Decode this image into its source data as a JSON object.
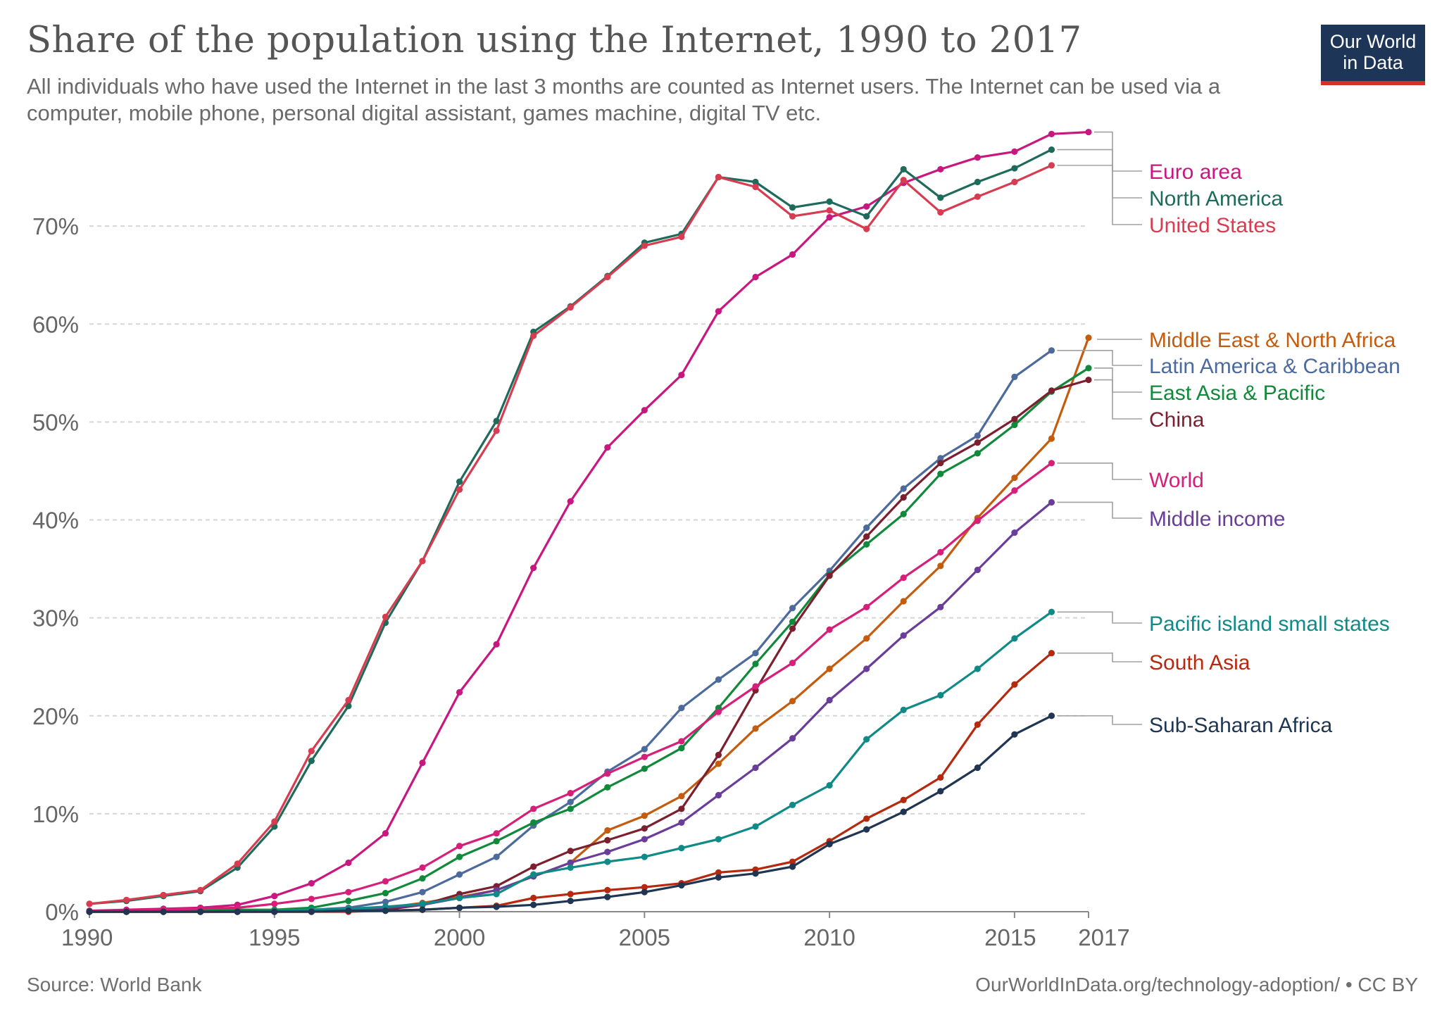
{
  "header": {
    "title": "Share of the population using the Internet, 1990 to 2017",
    "subtitle": "All individuals who have used the Internet in the last 3 months are counted as Internet users. The Internet can be used via a computer, mobile phone, personal digital assistant, games machine, digital TV etc.",
    "logo_line1": "Our World",
    "logo_line2": "in Data",
    "logo_color": "#1d3557",
    "logo_accent": "#d73027"
  },
  "footer": {
    "source": "Source: World Bank",
    "license": "OurWorldInData.org/technology-adoption/ • CC BY"
  },
  "chart_data": {
    "type": "line",
    "title": "Share of the population using the Internet, 1990 to 2017",
    "xlabel": "",
    "ylabel": "",
    "xlim": [
      1990,
      2017
    ],
    "ylim": [
      0,
      80
    ],
    "x_ticks": [
      1990,
      1995,
      2000,
      2005,
      2010,
      2015,
      2017
    ],
    "x_tick_labels": [
      "1990",
      "1995",
      "2000",
      "2005",
      "2010",
      "2015",
      "2017"
    ],
    "y_ticks": [
      0,
      10,
      20,
      30,
      40,
      50,
      60,
      70
    ],
    "y_tick_labels": [
      "0%",
      "10%",
      "20%",
      "30%",
      "40%",
      "50%",
      "60%",
      "70%"
    ],
    "grid": "horizontal-dashed",
    "legend": "right-labels",
    "series": [
      {
        "name": "Euro area",
        "color": "#c8177f",
        "x": [
          1990,
          1991,
          1992,
          1993,
          1994,
          1995,
          1996,
          1997,
          1998,
          1999,
          2000,
          2001,
          2002,
          2003,
          2004,
          2005,
          2006,
          2007,
          2008,
          2009,
          2010,
          2011,
          2012,
          2013,
          2014,
          2015,
          2016,
          2017
        ],
        "y": [
          0.1,
          0.2,
          0.3,
          0.4,
          0.7,
          1.6,
          2.9,
          5.0,
          8.0,
          15.2,
          22.4,
          27.3,
          35.1,
          41.9,
          47.4,
          51.2,
          54.8,
          61.3,
          64.8,
          67.1,
          70.9,
          72.0,
          74.4,
          75.8,
          77.0,
          77.6,
          79.4,
          79.6
        ]
      },
      {
        "name": "North America",
        "color": "#1e6b5c",
        "x": [
          1990,
          1991,
          1992,
          1993,
          1994,
          1995,
          1996,
          1997,
          1998,
          1999,
          2000,
          2001,
          2002,
          2003,
          2004,
          2005,
          2006,
          2007,
          2008,
          2009,
          2010,
          2011,
          2012,
          2013,
          2014,
          2015,
          2016
        ],
        "y": [
          0.8,
          1.1,
          1.6,
          2.1,
          4.5,
          8.7,
          15.4,
          21.0,
          29.5,
          35.8,
          43.9,
          50.1,
          59.2,
          61.8,
          64.9,
          68.3,
          69.2,
          75.0,
          74.5,
          71.9,
          72.5,
          71.0,
          75.8,
          72.9,
          74.5,
          75.9,
          77.8
        ]
      },
      {
        "name": "United States",
        "color": "#d73c50",
        "x": [
          1990,
          1991,
          1992,
          1993,
          1994,
          1995,
          1996,
          1997,
          1998,
          1999,
          2000,
          2001,
          2002,
          2003,
          2004,
          2005,
          2006,
          2007,
          2008,
          2009,
          2010,
          2011,
          2012,
          2013,
          2014,
          2015,
          2016
        ],
        "y": [
          0.8,
          1.2,
          1.7,
          2.2,
          4.9,
          9.2,
          16.4,
          21.6,
          30.1,
          35.8,
          43.1,
          49.1,
          58.8,
          61.7,
          64.8,
          68.0,
          68.9,
          75.0,
          74.0,
          71.0,
          71.6,
          69.7,
          74.7,
          71.4,
          73.0,
          74.5,
          76.2
        ]
      },
      {
        "name": "Middle East & North Africa",
        "color": "#c45c0f",
        "x": [
          1990,
          1991,
          1992,
          1993,
          1994,
          1995,
          1996,
          1997,
          1998,
          1999,
          2000,
          2001,
          2002,
          2003,
          2004,
          2005,
          2006,
          2007,
          2008,
          2009,
          2010,
          2011,
          2012,
          2013,
          2014,
          2015,
          2016,
          2017
        ],
        "y": [
          0,
          0,
          0,
          0,
          0,
          0,
          0.1,
          0.2,
          0.4,
          0.9,
          1.5,
          2.2,
          3.6,
          5.0,
          8.3,
          9.8,
          11.8,
          15.1,
          18.7,
          21.5,
          24.8,
          27.9,
          31.7,
          35.3,
          40.2,
          44.3,
          48.3,
          58.6
        ]
      },
      {
        "name": "Latin America & Caribbean",
        "color": "#4c6a9c",
        "x": [
          1990,
          1991,
          1992,
          1993,
          1994,
          1995,
          1996,
          1997,
          1998,
          1999,
          2000,
          2001,
          2002,
          2003,
          2004,
          2005,
          2006,
          2007,
          2008,
          2009,
          2010,
          2011,
          2012,
          2013,
          2014,
          2015,
          2016
        ],
        "y": [
          0,
          0,
          0,
          0,
          0.1,
          0.1,
          0.2,
          0.4,
          1.0,
          2.0,
          3.8,
          5.6,
          8.8,
          11.2,
          14.3,
          16.6,
          20.8,
          23.7,
          26.4,
          31.0,
          34.8,
          39.2,
          43.2,
          46.3,
          48.6,
          54.6,
          57.3
        ]
      },
      {
        "name": "East Asia & Pacific",
        "color": "#108a3a",
        "x": [
          1990,
          1991,
          1992,
          1993,
          1994,
          1995,
          1996,
          1997,
          1998,
          1999,
          2000,
          2001,
          2002,
          2003,
          2004,
          2005,
          2006,
          2007,
          2008,
          2009,
          2010,
          2011,
          2012,
          2013,
          2014,
          2015,
          2016,
          2017
        ],
        "y": [
          0,
          0,
          0,
          0.1,
          0.2,
          0.2,
          0.4,
          1.1,
          1.9,
          3.4,
          5.6,
          7.2,
          9.1,
          10.5,
          12.7,
          14.6,
          16.7,
          20.8,
          25.3,
          29.6,
          34.4,
          37.5,
          40.6,
          44.7,
          46.8,
          49.7,
          53.1,
          55.5
        ]
      },
      {
        "name": "China",
        "color": "#7c1f2e",
        "x": [
          1990,
          1991,
          1992,
          1993,
          1994,
          1995,
          1996,
          1997,
          1998,
          1999,
          2000,
          2001,
          2002,
          2003,
          2004,
          2005,
          2006,
          2007,
          2008,
          2009,
          2010,
          2011,
          2012,
          2013,
          2014,
          2015,
          2016,
          2017
        ],
        "y": [
          0,
          0,
          0,
          0,
          0,
          0,
          0,
          0.1,
          0.2,
          0.7,
          1.8,
          2.6,
          4.6,
          6.2,
          7.3,
          8.5,
          10.5,
          16.0,
          22.6,
          28.9,
          34.3,
          38.3,
          42.3,
          45.8,
          47.9,
          50.3,
          53.2,
          54.3
        ]
      },
      {
        "name": "World",
        "color": "#d61f79",
        "x": [
          1990,
          1991,
          1992,
          1993,
          1994,
          1995,
          1996,
          1997,
          1998,
          1999,
          2000,
          2001,
          2002,
          2003,
          2004,
          2005,
          2006,
          2007,
          2008,
          2009,
          2010,
          2011,
          2012,
          2013,
          2014,
          2015,
          2016
        ],
        "y": [
          0,
          0.1,
          0.2,
          0.3,
          0.4,
          0.8,
          1.3,
          2.0,
          3.1,
          4.5,
          6.7,
          8.0,
          10.5,
          12.1,
          14.1,
          15.8,
          17.4,
          20.4,
          23.0,
          25.4,
          28.8,
          31.1,
          34.1,
          36.7,
          39.9,
          43.0,
          45.8
        ]
      },
      {
        "name": "Middle income",
        "color": "#6a3d9a",
        "x": [
          1990,
          1991,
          1992,
          1993,
          1994,
          1995,
          1996,
          1997,
          1998,
          1999,
          2000,
          2001,
          2002,
          2003,
          2004,
          2005,
          2006,
          2007,
          2008,
          2009,
          2010,
          2011,
          2012,
          2013,
          2014,
          2015,
          2016
        ],
        "y": [
          0,
          0,
          0,
          0,
          0,
          0,
          0.1,
          0.2,
          0.4,
          0.7,
          1.4,
          2.2,
          3.6,
          5.0,
          6.1,
          7.4,
          9.1,
          11.9,
          14.7,
          17.7,
          21.6,
          24.8,
          28.2,
          31.1,
          34.9,
          38.7,
          41.8
        ]
      },
      {
        "name": "Pacific island small states",
        "color": "#108a87",
        "x": [
          1990,
          1991,
          1992,
          1993,
          1994,
          1995,
          1996,
          1997,
          1998,
          1999,
          2000,
          2001,
          2002,
          2003,
          2004,
          2005,
          2006,
          2007,
          2008,
          2009,
          2010,
          2011,
          2012,
          2013,
          2014,
          2015,
          2016
        ],
        "y": [
          0,
          0,
          0,
          0,
          0,
          0.1,
          0.2,
          0.3,
          0.5,
          0.8,
          1.4,
          1.8,
          3.8,
          4.5,
          5.1,
          5.6,
          6.5,
          7.4,
          8.7,
          10.9,
          12.9,
          17.6,
          20.6,
          22.1,
          24.8,
          27.9,
          30.6
        ]
      },
      {
        "name": "South Asia",
        "color": "#b5290f",
        "x": [
          1990,
          1991,
          1992,
          1993,
          1994,
          1995,
          1996,
          1997,
          1998,
          1999,
          2000,
          2001,
          2002,
          2003,
          2004,
          2005,
          2006,
          2007,
          2008,
          2009,
          2010,
          2011,
          2012,
          2013,
          2014,
          2015,
          2016
        ],
        "y": [
          0,
          0,
          0,
          0,
          0,
          0,
          0,
          0,
          0.1,
          0.2,
          0.4,
          0.6,
          1.4,
          1.8,
          2.2,
          2.5,
          2.9,
          4.0,
          4.3,
          5.1,
          7.2,
          9.5,
          11.4,
          13.7,
          19.1,
          23.2,
          26.4
        ]
      },
      {
        "name": "Sub-Saharan Africa",
        "color": "#1f3552",
        "x": [
          1990,
          1991,
          1992,
          1993,
          1994,
          1995,
          1996,
          1997,
          1998,
          1999,
          2000,
          2001,
          2002,
          2003,
          2004,
          2005,
          2006,
          2007,
          2008,
          2009,
          2010,
          2011,
          2012,
          2013,
          2014,
          2015,
          2016
        ],
        "y": [
          0,
          0,
          0,
          0,
          0,
          0,
          0,
          0.1,
          0.1,
          0.2,
          0.4,
          0.5,
          0.7,
          1.1,
          1.5,
          2.0,
          2.7,
          3.5,
          3.9,
          4.6,
          6.9,
          8.4,
          10.2,
          12.3,
          14.7,
          18.1,
          20.0
        ]
      }
    ]
  }
}
